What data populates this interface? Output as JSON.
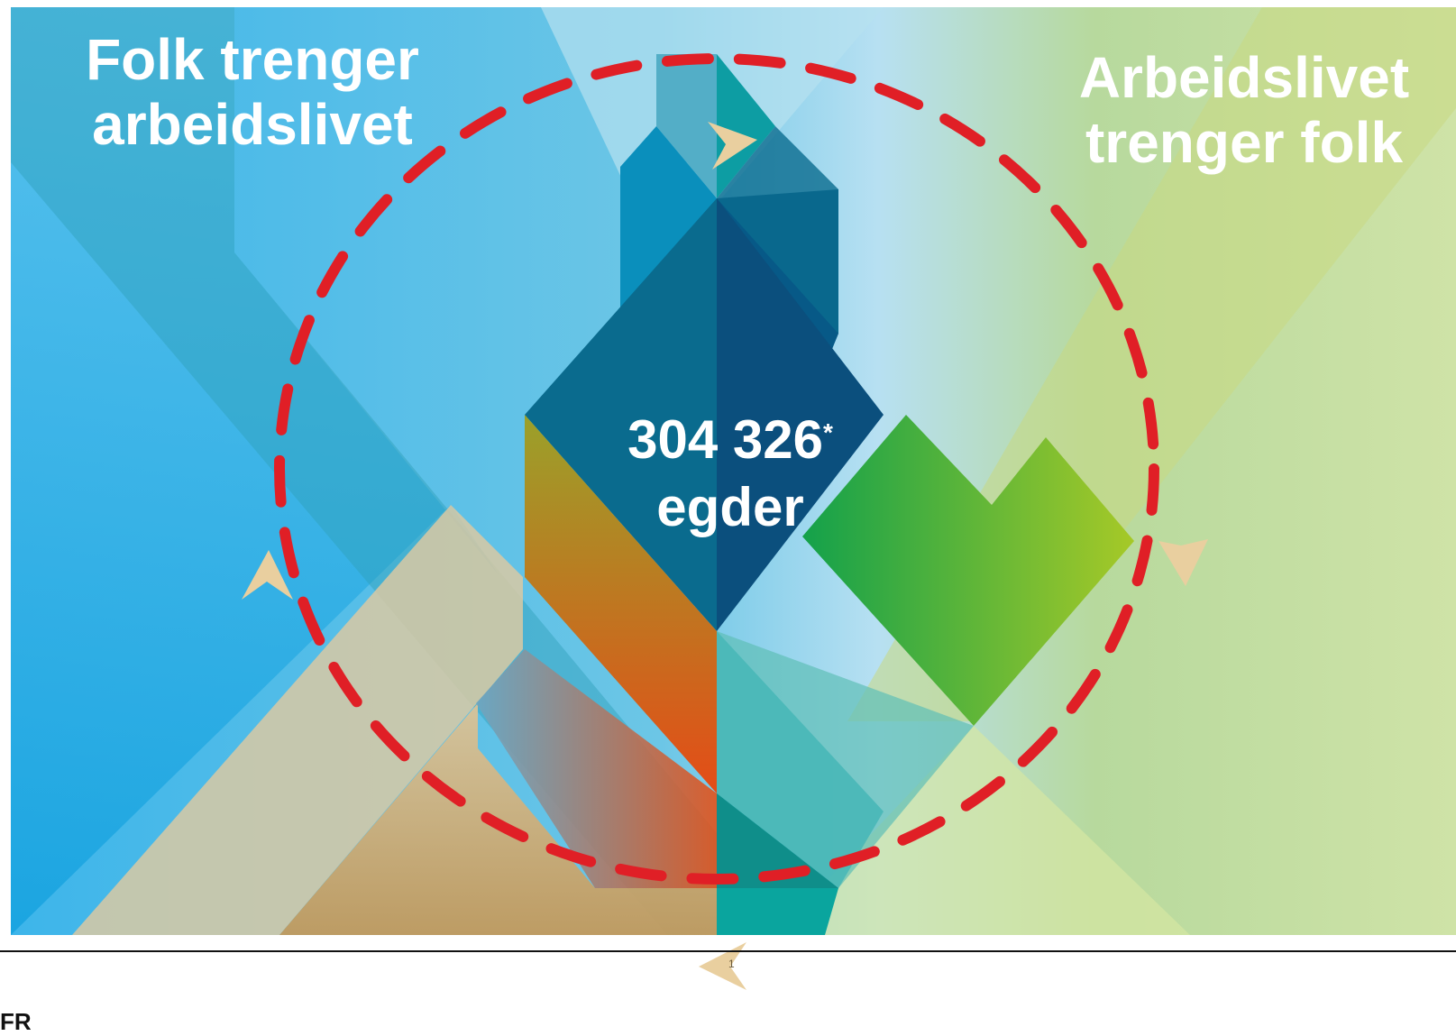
{
  "top_left_label": [
    "Folk trenger",
    "arbeidslivet"
  ],
  "top_right_label": [
    "Arbeidslivet",
    "trenger folk"
  ],
  "center": {
    "number": "304 326",
    "footnote_mark": "*",
    "unit": "egder"
  },
  "footer": {
    "page_number": "1",
    "text": "FR"
  },
  "colors": {
    "loop": "#e01f26",
    "arrow": "#e9cf9f",
    "sky_blue": "#3fb4e6",
    "teal": "#0a8aa8",
    "navy": "#0d4f7e",
    "green": "#7fbf3a",
    "orange": "#e4531b",
    "pale_green": "#c9e3a2"
  }
}
